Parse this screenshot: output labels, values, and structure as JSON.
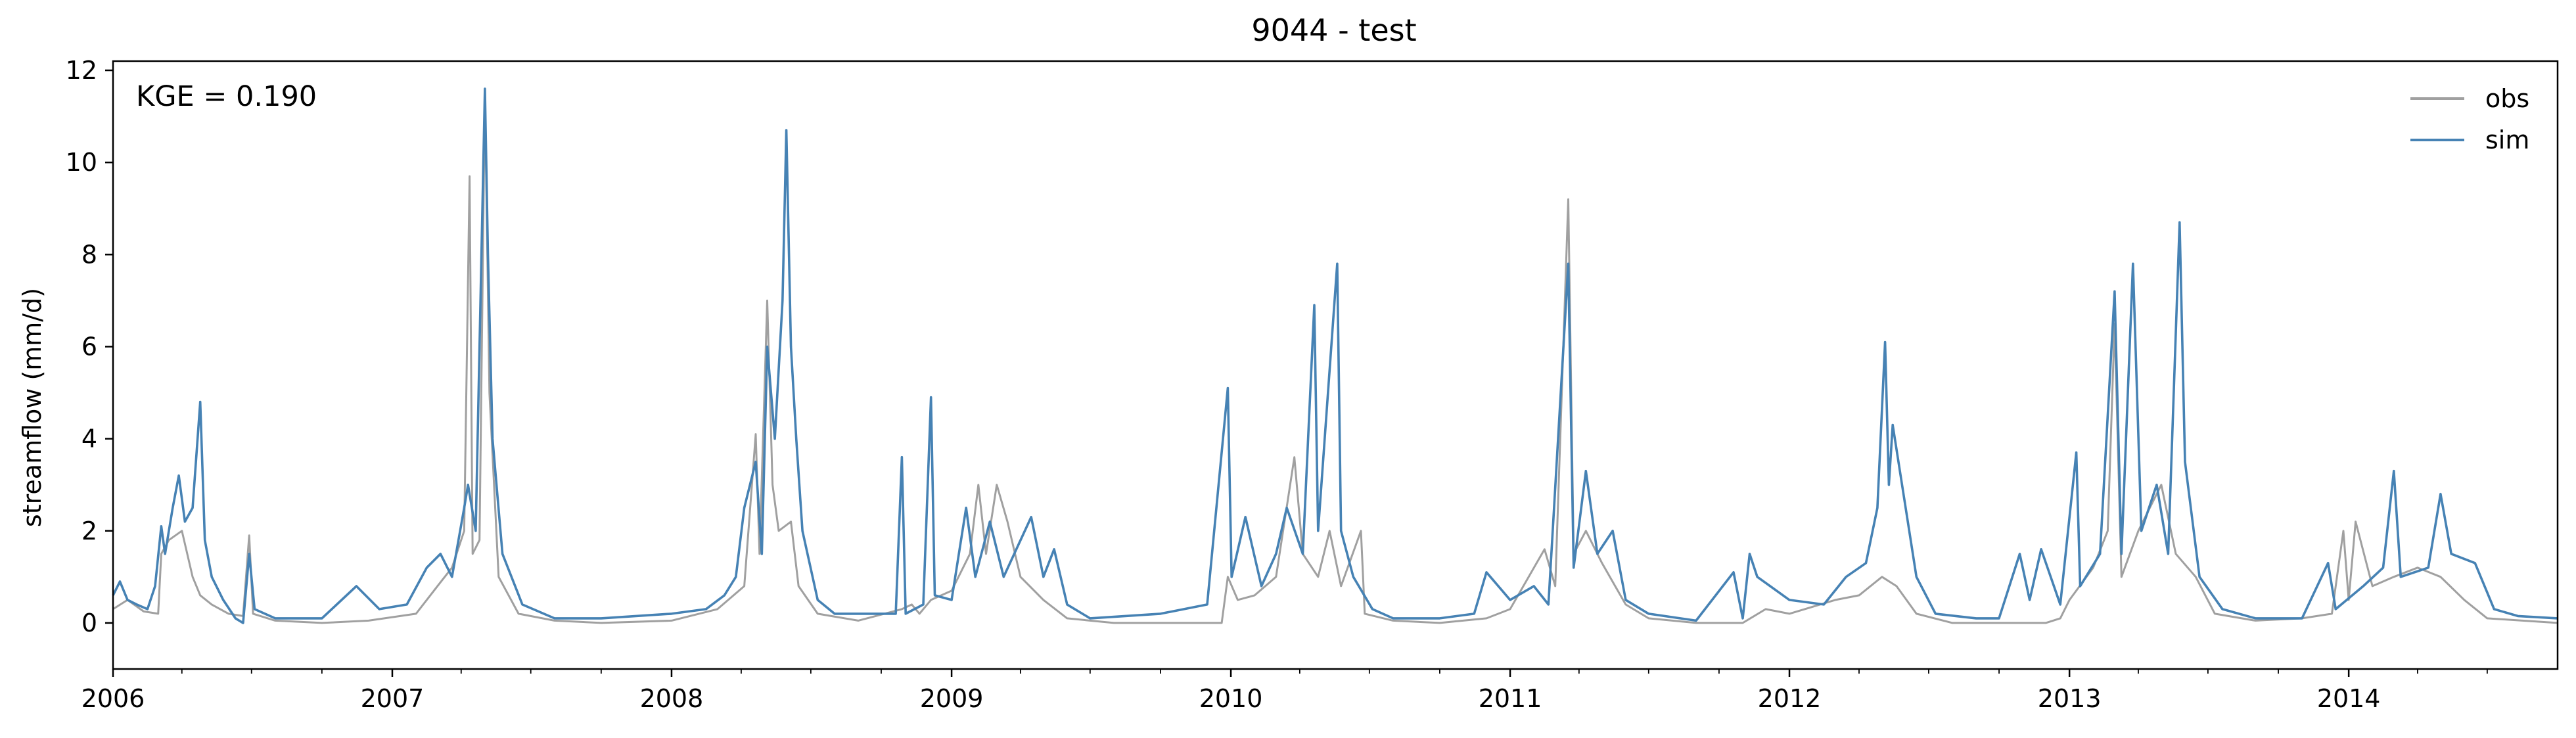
{
  "chart_data": {
    "type": "line",
    "title": "9044 - test",
    "xlabel": "",
    "ylabel": "streamflow (mm/d)",
    "annotation": "KGE = 0.190",
    "x_range": [
      "2006-01-01",
      "2014-10-01"
    ],
    "ylim": [
      -1.0,
      12.2
    ],
    "x_ticks": [
      "2006",
      "2007",
      "2008",
      "2009",
      "2010",
      "2011",
      "2012",
      "2013",
      "2014"
    ],
    "y_ticks": [
      0,
      2,
      4,
      6,
      8,
      10,
      12
    ],
    "grid": false,
    "legend": {
      "position": "top-right",
      "entries": [
        "obs",
        "sim"
      ]
    },
    "series": [
      {
        "name": "obs",
        "color": "#a0a0a0",
        "points": [
          [
            "2006-01-01",
            0.3
          ],
          [
            "2006-01-20",
            0.5
          ],
          [
            "2006-02-10",
            0.25
          ],
          [
            "2006-03-01",
            0.2
          ],
          [
            "2006-03-05",
            1.5
          ],
          [
            "2006-03-15",
            1.8
          ],
          [
            "2006-04-01",
            2.0
          ],
          [
            "2006-04-15",
            1.0
          ],
          [
            "2006-04-25",
            0.6
          ],
          [
            "2006-05-10",
            0.4
          ],
          [
            "2006-06-01",
            0.2
          ],
          [
            "2006-06-20",
            0.15
          ],
          [
            "2006-06-28",
            1.9
          ],
          [
            "2006-07-03",
            0.2
          ],
          [
            "2006-08-01",
            0.05
          ],
          [
            "2006-10-01",
            0.0
          ],
          [
            "2006-12-01",
            0.05
          ],
          [
            "2007-02-01",
            0.2
          ],
          [
            "2007-03-01",
            0.8
          ],
          [
            "2007-03-20",
            1.2
          ],
          [
            "2007-04-05",
            2.0
          ],
          [
            "2007-04-12",
            9.7
          ],
          [
            "2007-04-16",
            1.5
          ],
          [
            "2007-04-25",
            1.8
          ],
          [
            "2007-05-02",
            11.6
          ],
          [
            "2007-05-08",
            5.0
          ],
          [
            "2007-05-20",
            1.0
          ],
          [
            "2007-06-15",
            0.2
          ],
          [
            "2007-08-01",
            0.05
          ],
          [
            "2007-10-01",
            0.0
          ],
          [
            "2008-01-01",
            0.05
          ],
          [
            "2008-03-01",
            0.3
          ],
          [
            "2008-04-05",
            0.8
          ],
          [
            "2008-04-20",
            4.1
          ],
          [
            "2008-04-25",
            1.5
          ],
          [
            "2008-05-05",
            7.0
          ],
          [
            "2008-05-12",
            3.0
          ],
          [
            "2008-05-20",
            2.0
          ],
          [
            "2008-06-05",
            2.2
          ],
          [
            "2008-06-15",
            0.8
          ],
          [
            "2008-07-10",
            0.2
          ],
          [
            "2008-09-01",
            0.05
          ],
          [
            "2008-10-28",
            0.3
          ],
          [
            "2008-11-10",
            0.4
          ],
          [
            "2008-11-20",
            0.2
          ],
          [
            "2008-12-05",
            0.5
          ],
          [
            "2009-01-01",
            0.7
          ],
          [
            "2009-01-25",
            1.5
          ],
          [
            "2009-02-05",
            3.0
          ],
          [
            "2009-02-15",
            1.5
          ],
          [
            "2009-03-01",
            3.0
          ],
          [
            "2009-03-15",
            2.2
          ],
          [
            "2009-04-01",
            1.0
          ],
          [
            "2009-05-01",
            0.5
          ],
          [
            "2009-06-01",
            0.1
          ],
          [
            "2009-08-01",
            0.0
          ],
          [
            "2009-12-20",
            0.0
          ],
          [
            "2009-12-28",
            1.0
          ],
          [
            "2010-01-10",
            0.5
          ],
          [
            "2010-02-01",
            0.6
          ],
          [
            "2010-03-01",
            1.0
          ],
          [
            "2010-03-25",
            3.6
          ],
          [
            "2010-04-05",
            1.5
          ],
          [
            "2010-04-25",
            1.0
          ],
          [
            "2010-05-10",
            2.0
          ],
          [
            "2010-05-25",
            0.8
          ],
          [
            "2010-06-20",
            2.0
          ],
          [
            "2010-06-25",
            0.2
          ],
          [
            "2010-08-01",
            0.05
          ],
          [
            "2010-10-01",
            0.0
          ],
          [
            "2010-12-01",
            0.1
          ],
          [
            "2011-01-01",
            0.3
          ],
          [
            "2011-02-15",
            1.6
          ],
          [
            "2011-03-01",
            0.8
          ],
          [
            "2011-03-18",
            9.2
          ],
          [
            "2011-03-25",
            1.5
          ],
          [
            "2011-04-10",
            2.0
          ],
          [
            "2011-05-01",
            1.3
          ],
          [
            "2011-06-01",
            0.4
          ],
          [
            "2011-07-01",
            0.1
          ],
          [
            "2011-09-01",
            0.0
          ],
          [
            "2011-11-01",
            0.0
          ],
          [
            "2011-12-01",
            0.3
          ],
          [
            "2012-01-01",
            0.2
          ],
          [
            "2012-03-01",
            0.5
          ],
          [
            "2012-04-01",
            0.6
          ],
          [
            "2012-05-01",
            1.0
          ],
          [
            "2012-05-20",
            0.8
          ],
          [
            "2012-06-15",
            0.2
          ],
          [
            "2012-08-01",
            0.0
          ],
          [
            "2012-12-01",
            0.0
          ],
          [
            "2012-12-20",
            0.1
          ],
          [
            "2013-01-01",
            0.5
          ],
          [
            "2013-02-01",
            1.2
          ],
          [
            "2013-02-20",
            2.0
          ],
          [
            "2013-03-01",
            6.5
          ],
          [
            "2013-03-10",
            1.0
          ],
          [
            "2013-04-01",
            2.0
          ],
          [
            "2013-05-01",
            3.0
          ],
          [
            "2013-05-20",
            1.5
          ],
          [
            "2013-06-15",
            1.0
          ],
          [
            "2013-07-10",
            0.2
          ],
          [
            "2013-09-01",
            0.05
          ],
          [
            "2013-11-01",
            0.1
          ],
          [
            "2013-12-10",
            0.2
          ],
          [
            "2013-12-25",
            2.0
          ],
          [
            "2014-01-01",
            0.5
          ],
          [
            "2014-01-10",
            2.2
          ],
          [
            "2014-02-01",
            0.8
          ],
          [
            "2014-03-01",
            1.0
          ],
          [
            "2014-04-01",
            1.2
          ],
          [
            "2014-05-01",
            1.0
          ],
          [
            "2014-06-01",
            0.5
          ],
          [
            "2014-07-01",
            0.1
          ],
          [
            "2014-10-01",
            0.0
          ]
        ]
      },
      {
        "name": "sim",
        "color": "#4682b4",
        "points": [
          [
            "2006-01-01",
            0.6
          ],
          [
            "2006-01-10",
            0.9
          ],
          [
            "2006-01-20",
            0.5
          ],
          [
            "2006-02-01",
            0.4
          ],
          [
            "2006-02-15",
            0.3
          ],
          [
            "2006-02-25",
            0.8
          ],
          [
            "2006-03-05",
            2.1
          ],
          [
            "2006-03-10",
            1.5
          ],
          [
            "2006-03-20",
            2.5
          ],
          [
            "2006-03-28",
            3.2
          ],
          [
            "2006-04-05",
            2.2
          ],
          [
            "2006-04-15",
            2.5
          ],
          [
            "2006-04-25",
            4.8
          ],
          [
            "2006-05-01",
            1.8
          ],
          [
            "2006-05-10",
            1.0
          ],
          [
            "2006-05-25",
            0.5
          ],
          [
            "2006-06-10",
            0.1
          ],
          [
            "2006-06-20",
            0.0
          ],
          [
            "2006-06-28",
            1.5
          ],
          [
            "2006-07-05",
            0.3
          ],
          [
            "2006-08-01",
            0.1
          ],
          [
            "2006-10-01",
            0.1
          ],
          [
            "2006-11-15",
            0.8
          ],
          [
            "2006-12-15",
            0.3
          ],
          [
            "2007-01-20",
            0.4
          ],
          [
            "2007-02-15",
            1.2
          ],
          [
            "2007-03-05",
            1.5
          ],
          [
            "2007-03-20",
            1.0
          ],
          [
            "2007-04-05",
            2.5
          ],
          [
            "2007-04-10",
            3.0
          ],
          [
            "2007-04-20",
            2.0
          ],
          [
            "2007-05-02",
            11.6
          ],
          [
            "2007-05-06",
            8.0
          ],
          [
            "2007-05-12",
            4.0
          ],
          [
            "2007-05-25",
            1.5
          ],
          [
            "2007-06-20",
            0.4
          ],
          [
            "2007-08-01",
            0.1
          ],
          [
            "2007-10-01",
            0.1
          ],
          [
            "2008-01-01",
            0.2
          ],
          [
            "2008-02-15",
            0.3
          ],
          [
            "2008-03-10",
            0.6
          ],
          [
            "2008-03-25",
            1.0
          ],
          [
            "2008-04-05",
            2.5
          ],
          [
            "2008-04-20",
            3.5
          ],
          [
            "2008-04-28",
            1.5
          ],
          [
            "2008-05-05",
            6.0
          ],
          [
            "2008-05-15",
            4.0
          ],
          [
            "2008-05-25",
            7.0
          ],
          [
            "2008-05-30",
            10.7
          ],
          [
            "2008-06-05",
            6.0
          ],
          [
            "2008-06-12",
            4.0
          ],
          [
            "2008-06-20",
            2.0
          ],
          [
            "2008-07-10",
            0.5
          ],
          [
            "2008-08-01",
            0.2
          ],
          [
            "2008-10-20",
            0.2
          ],
          [
            "2008-10-28",
            3.6
          ],
          [
            "2008-11-02",
            0.2
          ],
          [
            "2008-11-25",
            0.4
          ],
          [
            "2008-12-05",
            4.9
          ],
          [
            "2008-12-10",
            0.6
          ],
          [
            "2009-01-01",
            0.5
          ],
          [
            "2009-01-20",
            2.5
          ],
          [
            "2009-02-01",
            1.0
          ],
          [
            "2009-02-20",
            2.2
          ],
          [
            "2009-03-10",
            1.0
          ],
          [
            "2009-04-15",
            2.3
          ],
          [
            "2009-05-01",
            1.0
          ],
          [
            "2009-05-15",
            1.6
          ],
          [
            "2009-06-01",
            0.4
          ],
          [
            "2009-07-01",
            0.1
          ],
          [
            "2009-10-01",
            0.2
          ],
          [
            "2009-12-01",
            0.4
          ],
          [
            "2009-12-28",
            5.1
          ],
          [
            "2010-01-02",
            1.0
          ],
          [
            "2010-01-20",
            2.3
          ],
          [
            "2010-02-10",
            0.8
          ],
          [
            "2010-03-01",
            1.5
          ],
          [
            "2010-03-15",
            2.5
          ],
          [
            "2010-04-05",
            1.5
          ],
          [
            "2010-04-20",
            6.9
          ],
          [
            "2010-04-25",
            2.0
          ],
          [
            "2010-05-20",
            7.8
          ],
          [
            "2010-05-25",
            2.0
          ],
          [
            "2010-06-10",
            1.0
          ],
          [
            "2010-07-05",
            0.3
          ],
          [
            "2010-08-01",
            0.1
          ],
          [
            "2010-10-01",
            0.1
          ],
          [
            "2010-11-15",
            0.2
          ],
          [
            "2010-12-01",
            1.1
          ],
          [
            "2011-01-01",
            0.5
          ],
          [
            "2011-02-01",
            0.8
          ],
          [
            "2011-02-20",
            0.4
          ],
          [
            "2011-03-18",
            7.8
          ],
          [
            "2011-03-25",
            1.2
          ],
          [
            "2011-04-10",
            3.3
          ],
          [
            "2011-04-25",
            1.5
          ],
          [
            "2011-05-15",
            2.0
          ],
          [
            "2011-06-01",
            0.5
          ],
          [
            "2011-07-01",
            0.2
          ],
          [
            "2011-09-01",
            0.05
          ],
          [
            "2011-10-20",
            1.1
          ],
          [
            "2011-11-01",
            0.1
          ],
          [
            "2011-11-10",
            1.5
          ],
          [
            "2011-11-20",
            1.0
          ],
          [
            "2012-01-01",
            0.5
          ],
          [
            "2012-02-15",
            0.4
          ],
          [
            "2012-03-15",
            1.0
          ],
          [
            "2012-04-10",
            1.3
          ],
          [
            "2012-04-25",
            2.5
          ],
          [
            "2012-05-05",
            6.1
          ],
          [
            "2012-05-10",
            3.0
          ],
          [
            "2012-05-15",
            4.3
          ],
          [
            "2012-06-15",
            1.0
          ],
          [
            "2012-07-10",
            0.2
          ],
          [
            "2012-09-01",
            0.1
          ],
          [
            "2012-10-01",
            0.1
          ],
          [
            "2012-10-28",
            1.5
          ],
          [
            "2012-11-10",
            0.5
          ],
          [
            "2012-11-25",
            1.6
          ],
          [
            "2012-12-20",
            0.4
          ],
          [
            "2013-01-10",
            3.7
          ],
          [
            "2013-01-15",
            0.8
          ],
          [
            "2013-02-10",
            1.5
          ],
          [
            "2013-03-01",
            7.2
          ],
          [
            "2013-03-10",
            1.5
          ],
          [
            "2013-03-25",
            7.8
          ],
          [
            "2013-04-05",
            2.0
          ],
          [
            "2013-04-25",
            3.0
          ],
          [
            "2013-05-10",
            1.5
          ],
          [
            "2013-05-25",
            8.7
          ],
          [
            "2013-06-01",
            3.5
          ],
          [
            "2013-06-20",
            1.0
          ],
          [
            "2013-07-20",
            0.3
          ],
          [
            "2013-09-01",
            0.1
          ],
          [
            "2013-11-01",
            0.1
          ],
          [
            "2013-12-05",
            1.3
          ],
          [
            "2013-12-15",
            0.3
          ],
          [
            "2014-01-20",
            0.8
          ],
          [
            "2014-02-15",
            1.2
          ],
          [
            "2014-03-01",
            3.3
          ],
          [
            "2014-03-10",
            1.0
          ],
          [
            "2014-04-15",
            1.2
          ],
          [
            "2014-05-01",
            2.8
          ],
          [
            "2014-05-15",
            1.5
          ],
          [
            "2014-06-15",
            1.3
          ],
          [
            "2014-07-10",
            0.3
          ],
          [
            "2014-08-10",
            0.15
          ],
          [
            "2014-10-01",
            0.1
          ]
        ]
      }
    ]
  }
}
